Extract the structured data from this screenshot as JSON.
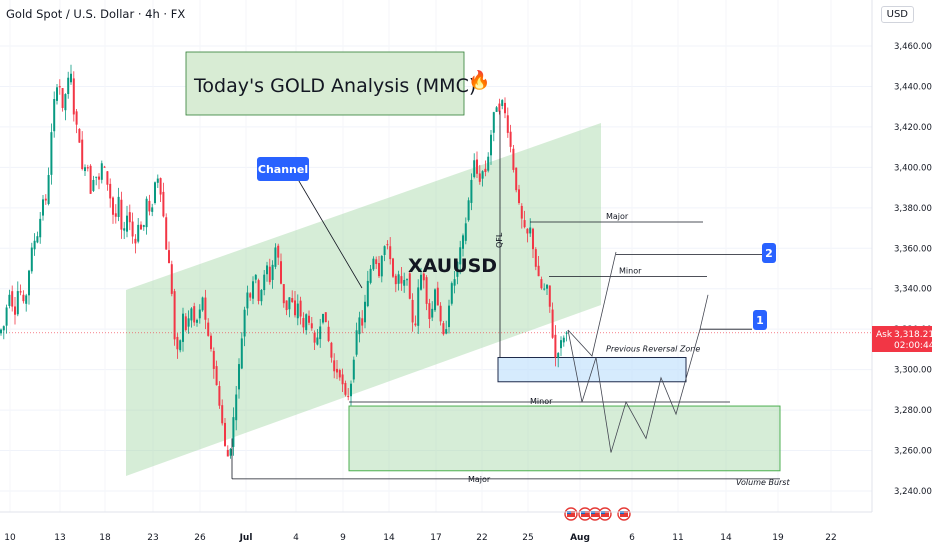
{
  "header": {
    "symbol_title": "Gold Spot / U.S. Dollar · 4h · FX",
    "currency": "USD"
  },
  "chart_data": {
    "type": "candlestick",
    "title": "Today's GOLD Analysis (MMC)",
    "watermark": "XAUUSD",
    "y_axis": {
      "min": 3230,
      "max": 3470,
      "ticks": [
        3460,
        3440,
        3420,
        3400,
        3380,
        3360,
        3340,
        3320,
        3300,
        3280,
        3260,
        3240
      ]
    },
    "x_axis_ticks": [
      "10",
      "13",
      "18",
      "23",
      "26",
      "Jul",
      "4",
      "9",
      "14",
      "17",
      "22",
      "25",
      "Aug",
      "6",
      "11",
      "14",
      "19",
      "22"
    ],
    "price_label": {
      "side": "Ask",
      "price": "3,318.21",
      "countdown": "02:00:44",
      "value": 3318.21
    },
    "colors": {
      "up": "#089981",
      "down": "#f23645",
      "zone_green": "#a5d6a7",
      "zone_blue": "#bbdefb",
      "badge": "#2962ff"
    },
    "annotations": {
      "channel_label": "Channel",
      "qfl": "QFL",
      "major_top": "Major",
      "minor_mid": "Minor",
      "previous_reversal_zone": "Previous Reversal Zone",
      "minor_low": "Minor",
      "major_bottom": "Major",
      "volume_burst": "Volume Burst",
      "target_1": "1",
      "target_2": "2",
      "fire_emoji": "🔥"
    },
    "levels": {
      "major_top": 3373,
      "minor_mid": 3346,
      "minor_low": 3284,
      "major_bottom": 3246,
      "prz_top": 3306,
      "prz_bottom": 3294,
      "demand_top": 3282,
      "demand_bottom": 3250,
      "target_1": 3320,
      "target_2": 3357
    },
    "key_prices": [
      {
        "label": "Jun high",
        "value": 3451
      },
      {
        "label": "Jun 26 low",
        "value": 3247
      },
      {
        "label": "Jul 9 low",
        "value": 3283
      },
      {
        "label": "Jul 22 high",
        "value": 3439
      },
      {
        "label": "Jul 25 low",
        "value": 3301
      },
      {
        "label": "Last",
        "value": 3318
      }
    ]
  }
}
